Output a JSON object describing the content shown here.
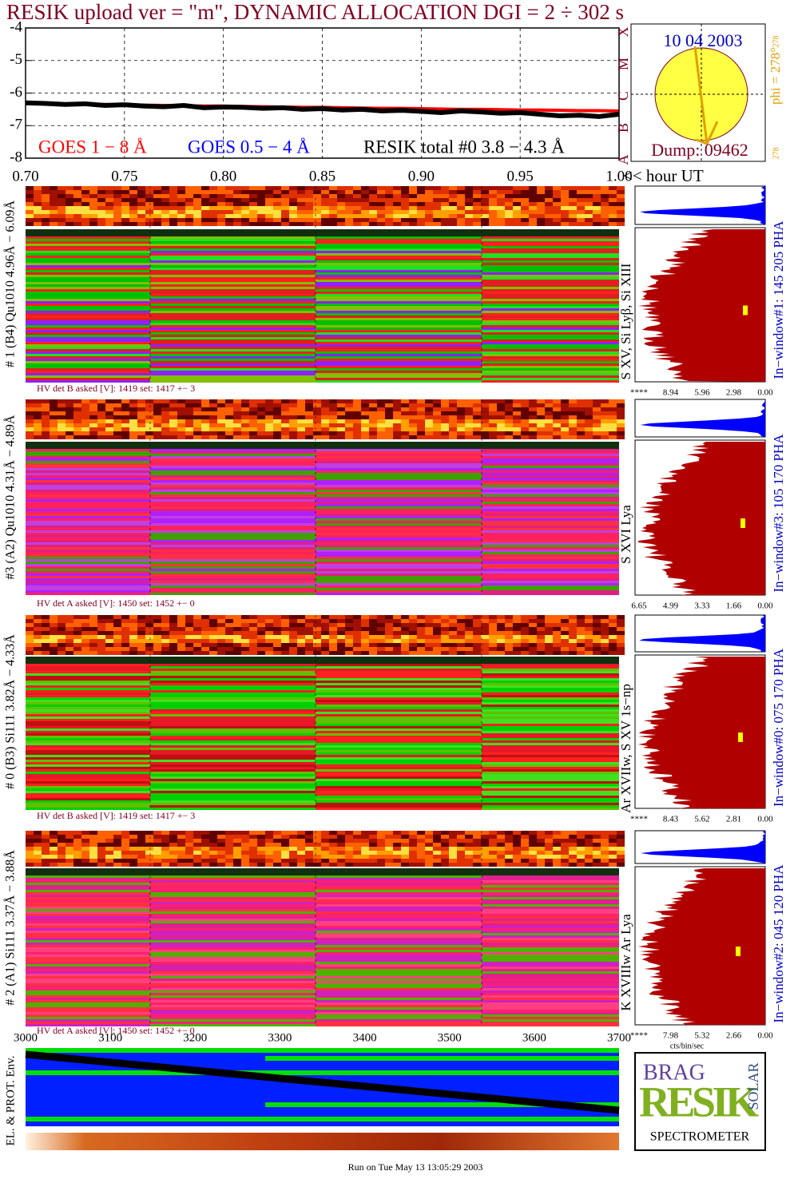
{
  "title": "RESIK upload ver = \"m\", DYNAMIC ALLOCATION  DGI =   2 ÷ 302 s",
  "chart_data": {
    "type": "line",
    "x": [
      0.7,
      0.71,
      0.72,
      0.73,
      0.74,
      0.75,
      0.76,
      0.77,
      0.78,
      0.79,
      0.8,
      0.81,
      0.82,
      0.83,
      0.84,
      0.85,
      0.86,
      0.87,
      0.88,
      0.89,
      0.9,
      0.91,
      0.92,
      0.93,
      0.94,
      0.95,
      0.96,
      0.97,
      0.98,
      0.99,
      1.0
    ],
    "xlim": [
      0.7,
      1.0
    ],
    "xticks": [
      {
        "value": 0.7,
        "label": "0.70"
      },
      {
        "value": 0.75,
        "label": "0.75"
      },
      {
        "value": 0.8,
        "label": "0.80"
      },
      {
        "value": 0.85,
        "label": "0.85"
      },
      {
        "value": 0.9,
        "label": "0.90"
      },
      {
        "value": 0.95,
        "label": "0.95"
      },
      {
        "value": 1.0,
        "label": "1.00"
      }
    ],
    "x_label": "<< hour UT",
    "ylim": [
      -8,
      -4
    ],
    "yticks": [
      -8,
      -7,
      -6,
      -5,
      -4
    ],
    "grid": true,
    "series": [
      {
        "name": "GOES 1 − 8 Å",
        "color": "#ff0000",
        "values": [
          -6.32,
          -6.33,
          -6.34,
          -6.34,
          -6.35,
          -6.36,
          -6.37,
          -6.38,
          -6.39,
          -6.4,
          -6.4,
          -6.41,
          -6.42,
          -6.43,
          -6.44,
          -6.44,
          -6.45,
          -6.46,
          -6.47,
          -6.47,
          -6.48,
          -6.49,
          -6.5,
          -6.5,
          -6.51,
          -6.52,
          -6.52,
          -6.53,
          -6.54,
          -6.54,
          -6.55
        ]
      },
      {
        "name": "GOES 0.5 − 4 Å",
        "color": "#0000ff",
        "values": [
          null,
          null,
          null,
          null,
          null,
          null,
          null,
          null,
          null,
          null,
          null,
          null,
          null,
          null,
          null,
          null,
          null,
          null,
          null,
          null,
          null,
          null,
          null,
          null,
          null,
          null,
          null,
          null,
          null,
          null,
          null
        ]
      },
      {
        "name": "RESIK total #0  3.8 − 4.3 Å",
        "color": "#000000",
        "values": [
          -6.3,
          -6.32,
          -6.35,
          -6.33,
          -6.38,
          -6.36,
          -6.4,
          -6.42,
          -6.38,
          -6.45,
          -6.43,
          -6.44,
          -6.47,
          -6.45,
          -6.5,
          -6.48,
          -6.52,
          -6.5,
          -6.55,
          -6.53,
          -6.56,
          -6.6,
          -6.55,
          -6.58,
          -6.62,
          -6.6,
          -6.65,
          -6.7,
          -6.68,
          -6.72,
          -6.65
        ]
      }
    ]
  },
  "sun": {
    "date": "10 04 2003",
    "dump": "Dump: 09462",
    "phi": "phi = 278°",
    "phi_small": "278",
    "bottom": "278",
    "letters": [
      "X",
      "M",
      "C",
      "B",
      "A"
    ]
  },
  "panels": [
    {
      "label": "# 1 (B4) Qu1010 4.96Å − 6.09Å",
      "hv": "HV det B asked [V]:  1419 set:  1417 +−    3",
      "lines": "S XV, Si Lyβ, Si XIII",
      "window": "In−window#1:  145 205 PHA",
      "hist_ticks": [
        "****",
        "8.94",
        "5.96",
        "2.98",
        "0.00"
      ]
    },
    {
      "label": "#3 (A2) Qu1010  4.31Å − 4.89Å",
      "hv": "HV det A asked [V]:  1450 set:  1452 +−    0",
      "lines": "S XVI Lya",
      "window": "In−window#3:  105 170 PHA",
      "hist_ticks": [
        "6.65",
        "4.99",
        "3.33",
        "1.66",
        "0.00"
      ]
    },
    {
      "label": "# 0 (B3) Si111  3.82Å − 4.33Å",
      "hv": "HV det B asked [V]:  1419 set:  1417 +−    3",
      "lines": "Ar XVIIw,  S XV 1s−np",
      "window": "In−window#0:  075 170 PHA",
      "hist_ticks": [
        "****",
        "8.43",
        "5.62",
        "2.81",
        "0.00"
      ]
    },
    {
      "label": "# 2 (A1) Si111  3.37Å − 3.88Å",
      "hv": "HV det A asked [V]:  1450 set:  1452 +−    0",
      "lines": "K XVIIIw  Ar Lya",
      "window": "In−window#2:  045 120 PHA",
      "hist_ticks": [
        "****",
        "7.98",
        "5.32",
        "2.66",
        "0.00"
      ]
    }
  ],
  "hist_unit": "cts/bin/sec",
  "bottom": {
    "axis_ticks": [
      "3000",
      "3100",
      "3200",
      "3300",
      "3400",
      "3500",
      "3600",
      "3700"
    ],
    "label": "EL. & PROT. Env."
  },
  "logo": {
    "words": [
      "BRAG",
      "RESIK",
      "SOLAR"
    ],
    "caption": "SPECTROMETER"
  },
  "footer": "Run on Tue May 13 13:05:29 2003"
}
